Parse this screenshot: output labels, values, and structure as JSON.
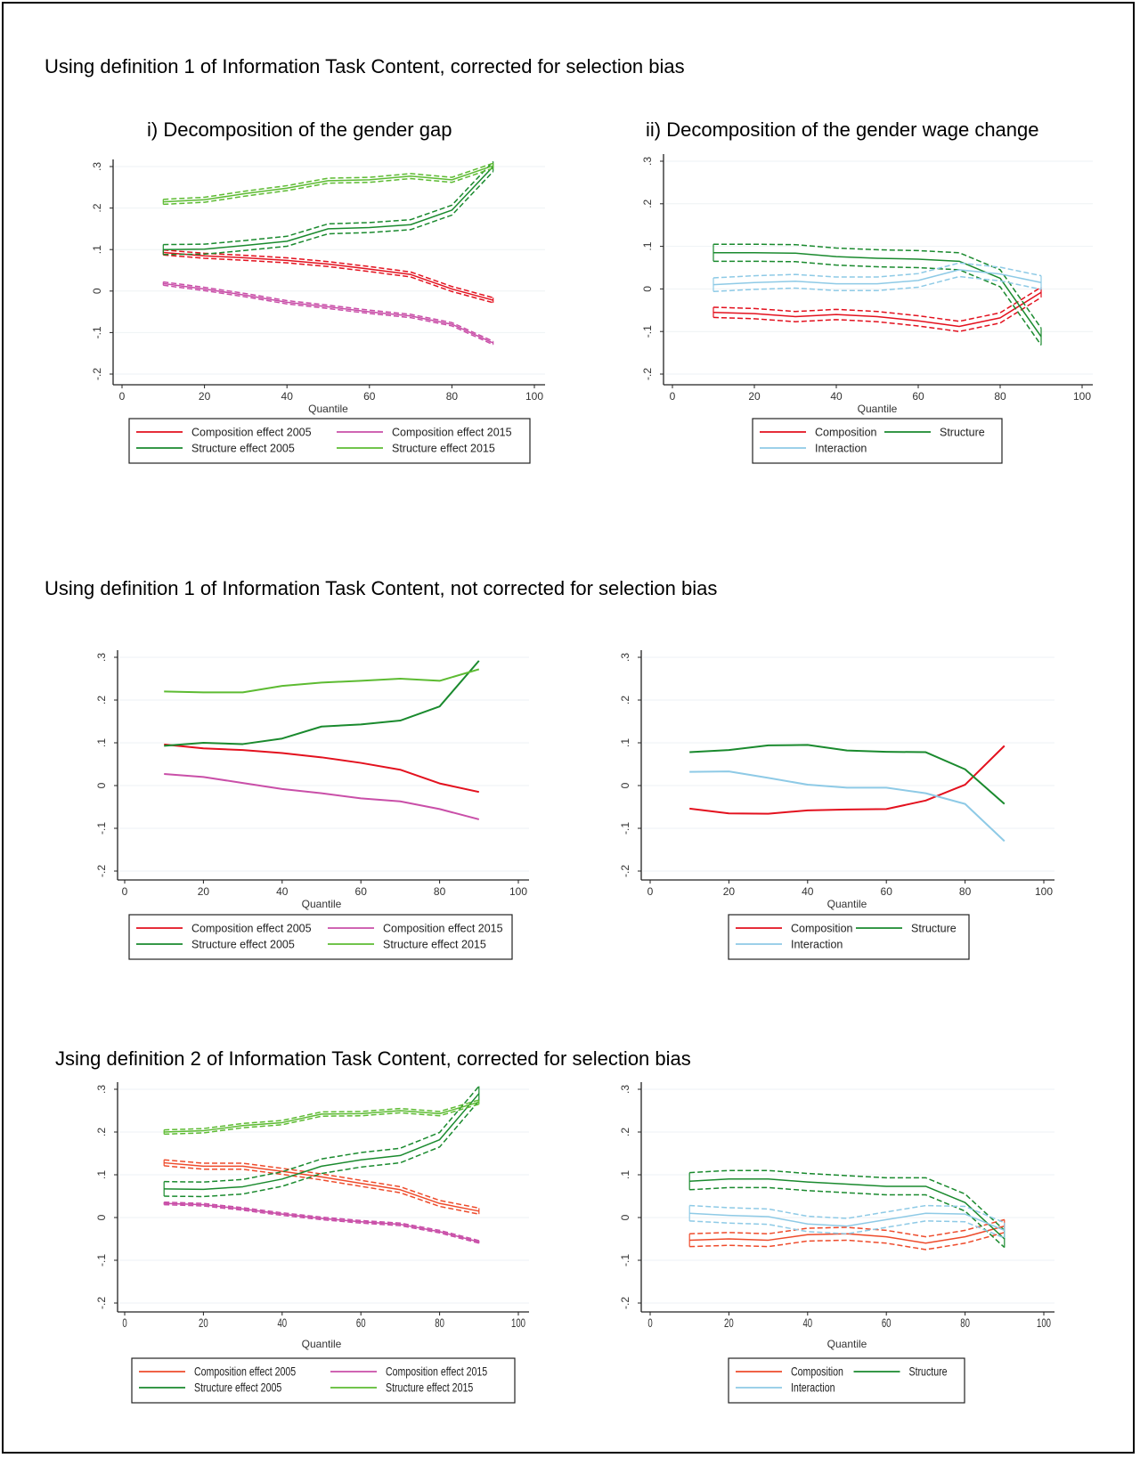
{
  "sections": [
    {
      "title": "Using definition 1 of Information Task Content, corrected for selection bias"
    },
    {
      "title": "Using definition 1 of Information Task Content, not corrected for selection bias"
    },
    {
      "title": "Jsing definition 2 of Information Task Content, corrected for selection bias"
    }
  ],
  "panel_titles": {
    "left": "i) Decomposition of the gender gap",
    "right": "ii) Decomposition of the gender wage change"
  },
  "colors": {
    "composition_2005": "#e3111e",
    "composition_2015": "#c94fa8",
    "structure_2005": "#1a8a2e",
    "structure_2015": "#5dbb32",
    "composition": "#e3111e",
    "structure": "#1a8a2e",
    "interaction": "#8ecae6",
    "composition_def2": "#ee4b2b"
  },
  "chart_data": [
    {
      "id": "def1-corrected-gap",
      "type": "line",
      "title": "i) Decomposition of the gender gap",
      "xlabel": "Quantile",
      "ylabel": "",
      "xlim": [
        0,
        100
      ],
      "ylim": [
        -0.2,
        0.3
      ],
      "xticks": [
        "0",
        "20",
        "40",
        "60",
        "80",
        "100"
      ],
      "yticks": [
        ".3",
        ".2",
        ".1",
        "0",
        "-.1",
        "-.2"
      ],
      "grid": true,
      "legend_position": "bottom",
      "confidence_bands": true,
      "x": [
        10,
        20,
        30,
        40,
        50,
        60,
        70,
        80,
        90
      ],
      "series": [
        {
          "name": "Composition effect 2005",
          "color_key": "composition_2005",
          "values": [
            0.093,
            0.085,
            0.08,
            0.074,
            0.065,
            0.053,
            0.04,
            0.005,
            -0.022
          ],
          "band": 0.006
        },
        {
          "name": "Composition effect 2015",
          "color_key": "composition_2015",
          "values": [
            0.018,
            0.005,
            -0.01,
            -0.027,
            -0.038,
            -0.05,
            -0.06,
            -0.08,
            -0.125
          ],
          "band": 0.004
        },
        {
          "name": "Structure effect 2005",
          "color_key": "structure_2005",
          "values": [
            0.1,
            0.101,
            0.11,
            0.12,
            0.15,
            0.153,
            0.16,
            0.195,
            0.3
          ],
          "band": 0.012
        },
        {
          "name": "Structure effect 2015",
          "color_key": "structure_2015",
          "values": [
            0.215,
            0.22,
            0.235,
            0.248,
            0.266,
            0.268,
            0.277,
            0.268,
            0.302
          ],
          "band": 0.006
        }
      ],
      "legend": [
        "Composition effect 2005",
        "Composition effect 2015",
        "Structure effect 2005",
        "Structure effect 2015"
      ]
    },
    {
      "id": "def1-corrected-change",
      "type": "line",
      "title": "ii) Decomposition of the gender wage change",
      "xlabel": "Quantile",
      "ylabel": "",
      "xlim": [
        0,
        100
      ],
      "ylim": [
        -0.2,
        0.3
      ],
      "xticks": [
        "0",
        "20",
        "40",
        "60",
        "80",
        "100"
      ],
      "yticks": [
        ".3",
        ".2",
        ".1",
        "0",
        "-.1",
        "-.2"
      ],
      "grid": true,
      "legend_position": "bottom",
      "confidence_bands": true,
      "x": [
        10,
        20,
        30,
        40,
        50,
        60,
        70,
        80,
        90
      ],
      "series": [
        {
          "name": "Composition",
          "color_key": "composition",
          "values": [
            -0.055,
            -0.058,
            -0.065,
            -0.06,
            -0.065,
            -0.075,
            -0.088,
            -0.068,
            -0.008
          ],
          "band": 0.012
        },
        {
          "name": "Structure",
          "color_key": "structure",
          "values": [
            0.085,
            0.085,
            0.084,
            0.076,
            0.072,
            0.07,
            0.065,
            0.025,
            -0.112
          ],
          "band": 0.02
        },
        {
          "name": "Interaction",
          "color_key": "interaction",
          "values": [
            0.01,
            0.015,
            0.018,
            0.012,
            0.012,
            0.02,
            0.045,
            0.035,
            0.015
          ],
          "band": 0.016
        }
      ],
      "legend": [
        "Composition",
        "Structure",
        "Interaction"
      ]
    },
    {
      "id": "def1-uncorrected-gap",
      "type": "line",
      "title": "",
      "xlabel": "Quantile",
      "ylabel": "",
      "xlim": [
        0,
        100
      ],
      "ylim": [
        -0.2,
        0.3
      ],
      "xticks": [
        "0",
        "20",
        "40",
        "60",
        "80",
        "100"
      ],
      "yticks": [
        ".3",
        ".2",
        ".1",
        "0",
        "-.1",
        "-.2"
      ],
      "grid": true,
      "legend_position": "bottom",
      "confidence_bands": false,
      "x": [
        10,
        20,
        30,
        40,
        50,
        60,
        70,
        80,
        90
      ],
      "series": [
        {
          "name": "Composition effect 2005",
          "color_key": "composition_2005",
          "values": [
            0.096,
            0.087,
            0.083,
            0.076,
            0.066,
            0.053,
            0.037,
            0.005,
            -0.015
          ],
          "band": 0
        },
        {
          "name": "Composition effect 2015",
          "color_key": "composition_2015",
          "values": [
            0.027,
            0.02,
            0.006,
            -0.008,
            -0.018,
            -0.03,
            -0.037,
            -0.055,
            -0.079
          ],
          "band": 0
        },
        {
          "name": "Structure effect 2005",
          "color_key": "structure_2005",
          "values": [
            0.093,
            0.1,
            0.097,
            0.11,
            0.138,
            0.143,
            0.152,
            0.185,
            0.292
          ],
          "band": 0
        },
        {
          "name": "Structure effect 2015",
          "color_key": "structure_2015",
          "values": [
            0.22,
            0.218,
            0.218,
            0.233,
            0.241,
            0.245,
            0.25,
            0.245,
            0.272
          ],
          "band": 0
        }
      ],
      "legend": [
        "Composition effect 2005",
        "Composition effect 2015",
        "Structure effect 2005",
        "Structure effect 2015"
      ]
    },
    {
      "id": "def1-uncorrected-change",
      "type": "line",
      "title": "",
      "xlabel": "Quantile",
      "ylabel": "",
      "xlim": [
        0,
        100
      ],
      "ylim": [
        -0.2,
        0.3
      ],
      "xticks": [
        "0",
        "20",
        "40",
        "60",
        "80",
        "100"
      ],
      "yticks": [
        ".3",
        ".2",
        ".1",
        "0",
        "-.1",
        "-.2"
      ],
      "grid": true,
      "legend_position": "bottom",
      "confidence_bands": false,
      "x": [
        10,
        20,
        30,
        40,
        50,
        60,
        70,
        80,
        90
      ],
      "series": [
        {
          "name": "Composition",
          "color_key": "composition",
          "values": [
            -0.054,
            -0.065,
            -0.066,
            -0.058,
            -0.056,
            -0.055,
            -0.035,
            0.002,
            0.093
          ],
          "band": 0
        },
        {
          "name": "Structure",
          "color_key": "structure",
          "values": [
            0.078,
            0.083,
            0.094,
            0.095,
            0.082,
            0.079,
            0.078,
            0.038,
            -0.043
          ],
          "band": 0
        },
        {
          "name": "Interaction",
          "color_key": "interaction",
          "values": [
            0.032,
            0.033,
            0.018,
            0.002,
            -0.005,
            -0.005,
            -0.018,
            -0.043,
            -0.13
          ],
          "band": 0
        }
      ],
      "legend": [
        "Composition",
        "Structure",
        "Interaction"
      ]
    },
    {
      "id": "def2-corrected-gap",
      "type": "line",
      "title": "",
      "xlabel": "Quantile",
      "ylabel": "",
      "xlim": [
        0,
        100
      ],
      "ylim": [
        -0.2,
        0.3
      ],
      "xticks": [
        "0",
        "20",
        "40",
        "60",
        "80",
        "100"
      ],
      "yticks": [
        ".3",
        ".2",
        ".1",
        "0",
        "-.1",
        "-.2"
      ],
      "grid": true,
      "legend_position": "bottom",
      "confidence_bands": true,
      "x": [
        10,
        20,
        30,
        40,
        50,
        60,
        70,
        80,
        90
      ],
      "series": [
        {
          "name": "Composition effect 2005",
          "color_key": "composition_def2",
          "values": [
            0.128,
            0.12,
            0.12,
            0.108,
            0.095,
            0.08,
            0.065,
            0.033,
            0.015
          ],
          "band": 0.007
        },
        {
          "name": "Composition effect 2015",
          "color_key": "composition_2015",
          "values": [
            0.033,
            0.03,
            0.02,
            0.008,
            -0.002,
            -0.01,
            -0.016,
            -0.033,
            -0.057
          ],
          "band": 0.003
        },
        {
          "name": "Structure effect 2005",
          "color_key": "structure_2005",
          "values": [
            0.067,
            0.066,
            0.072,
            0.09,
            0.12,
            0.135,
            0.145,
            0.182,
            0.29
          ],
          "band": 0.017
        },
        {
          "name": "Structure effect 2015",
          "color_key": "structure_2015",
          "values": [
            0.2,
            0.203,
            0.215,
            0.222,
            0.242,
            0.243,
            0.25,
            0.243,
            0.27
          ],
          "band": 0.005
        }
      ],
      "legend": [
        "Composition effect 2005",
        "Composition effect 2015",
        "Structure effect 2005",
        "Structure effect 2015"
      ]
    },
    {
      "id": "def2-corrected-change",
      "type": "line",
      "title": "",
      "xlabel": "Quantile",
      "ylabel": "",
      "xlim": [
        0,
        100
      ],
      "ylim": [
        -0.2,
        0.3
      ],
      "xticks": [
        "0",
        "20",
        "40",
        "60",
        "80",
        "100"
      ],
      "yticks": [
        ".3",
        ".2",
        ".1",
        "0",
        "-.1",
        "-.2"
      ],
      "grid": true,
      "legend_position": "bottom",
      "confidence_bands": true,
      "x": [
        10,
        20,
        30,
        40,
        50,
        60,
        70,
        80,
        90
      ],
      "series": [
        {
          "name": "Composition",
          "color_key": "composition_def2",
          "values": [
            -0.053,
            -0.05,
            -0.053,
            -0.04,
            -0.038,
            -0.045,
            -0.06,
            -0.045,
            -0.02
          ],
          "band": 0.015
        },
        {
          "name": "Structure",
          "color_key": "structure",
          "values": [
            0.085,
            0.09,
            0.09,
            0.083,
            0.078,
            0.073,
            0.073,
            0.035,
            -0.05
          ],
          "band": 0.02
        },
        {
          "name": "Interaction",
          "color_key": "interaction",
          "values": [
            0.01,
            0.005,
            0.002,
            -0.015,
            -0.02,
            -0.005,
            0.01,
            0.008,
            -0.03
          ],
          "band": 0.018
        }
      ],
      "legend": [
        "Composition",
        "Structure",
        "Interaction"
      ]
    }
  ]
}
